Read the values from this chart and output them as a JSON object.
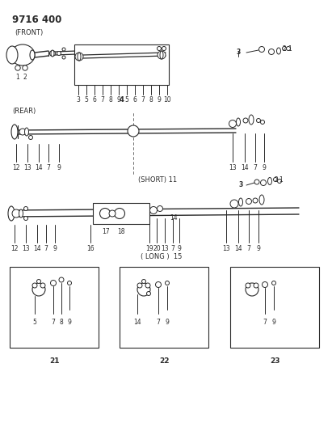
{
  "title": "9716 400",
  "bg_color": "#ffffff",
  "fg_color": "#2a2a2a",
  "sections": {
    "front_label": "(FRONT)",
    "rear_label": "(REAR)",
    "short_label": "(SHORT) 11",
    "long_label": "( LONG )  15"
  },
  "figsize": [
    4.11,
    5.33
  ],
  "dpi": 100,
  "xlim": [
    0,
    411
  ],
  "ylim": [
    0,
    533
  ]
}
